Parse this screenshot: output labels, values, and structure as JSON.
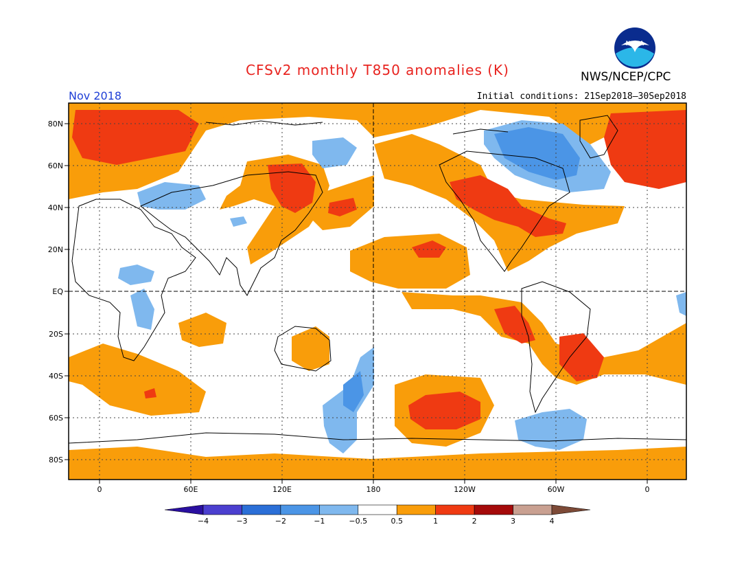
{
  "title": "CFSv2 monthly T850 anomalies (K)",
  "organization": "NWS/NCEP/CPC",
  "logo_text": "NOAA",
  "month": "Nov 2018",
  "initial_conditions": "Initial conditions: 21Sep2018–30Sep2018",
  "lat_labels": [
    "80N",
    "60N",
    "40N",
    "20N",
    "EQ",
    "20S",
    "40S",
    "60S",
    "80S"
  ],
  "lon_labels": [
    "0",
    "60E",
    "120E",
    "180",
    "120W",
    "60W",
    "0"
  ],
  "colorbar": {
    "labels": [
      "−4",
      "−3",
      "−2",
      "−1",
      "−0.5",
      "0.5",
      "1",
      "2",
      "3",
      "4"
    ],
    "colors": [
      "#2a0fa0",
      "#4b3fcf",
      "#2b6fd7",
      "#4b95e6",
      "#7fb8ee",
      "#ffffff",
      "#f99d0a",
      "#ef3a12",
      "#a50a0a",
      "#c9a091",
      "#7d4a37"
    ]
  },
  "colors": {
    "ocean_bg": "#ffffff",
    "warm_1": "#f99d0a",
    "warm_2": "#ef3a12",
    "cool_1": "#7fb8ee",
    "cool_2": "#4b95e6",
    "title": "#e8231f",
    "month": "#1f3fd6"
  }
}
